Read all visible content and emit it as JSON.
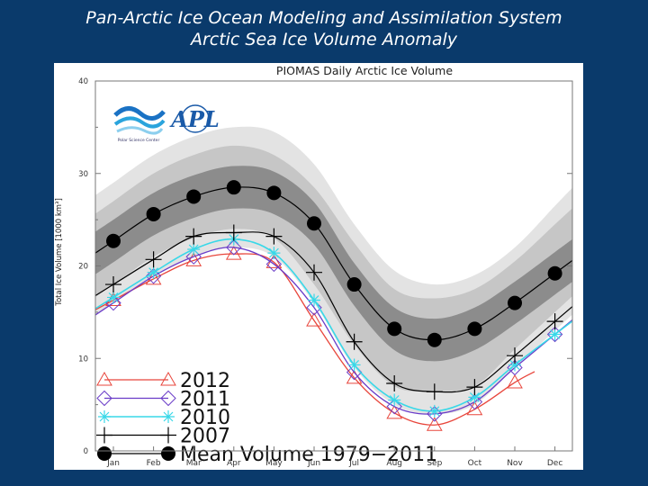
{
  "slide": {
    "title_line1": "Pan-Arctic Ice Ocean Modeling and Assimilation System",
    "title_line2": "Arctic Sea Ice Volume Anomaly"
  },
  "logos": {
    "psc_text": "Polar Science Center",
    "apl_text": "APL"
  },
  "colors": {
    "background": "#0a3a6b",
    "band_outer": "#e3e3e3",
    "band_mid": "#c6c6c6",
    "band_inner": "#8c8c8c",
    "mean": "#000000",
    "y2012": "#e8463c",
    "y2011": "#6a3cc8",
    "y2010": "#38d8e8",
    "y2007": "#000000"
  },
  "chart_data": {
    "type": "line",
    "title": "PIOMAS Daily Arctic Ice Volume",
    "xlabel": "",
    "ylabel": "Total Ice Volume [1000 km³]",
    "ylim": [
      0,
      40
    ],
    "yticks": [
      0,
      10,
      20,
      30,
      40
    ],
    "categories": [
      "Jan",
      "Feb",
      "Mar",
      "Apr",
      "May",
      "Jun",
      "Jul",
      "Aug",
      "Sep",
      "Oct",
      "Nov",
      "Dec"
    ],
    "bands": {
      "outer_upper": [
        29.0,
        32.0,
        34.0,
        35.0,
        34.5,
        31.0,
        24.5,
        19.5,
        18.0,
        19.0,
        22.0,
        26.5
      ],
      "outer_lower": [
        16.0,
        19.0,
        21.0,
        22.0,
        21.0,
        16.0,
        9.0,
        5.0,
        4.0,
        5.0,
        9.0,
        13.0
      ],
      "mid_upper": [
        27.0,
        30.0,
        32.0,
        33.0,
        32.0,
        28.5,
        22.5,
        17.5,
        16.5,
        17.5,
        20.5,
        24.5
      ],
      "mid_lower": [
        18.0,
        21.0,
        23.0,
        24.0,
        23.0,
        18.0,
        11.5,
        7.0,
        6.5,
        7.0,
        11.0,
        15.0
      ]
    },
    "series": [
      {
        "name": "Mean Volume 1979−2011",
        "marker": "circle",
        "values": [
          22.7,
          25.6,
          27.5,
          28.5,
          27.9,
          24.6,
          18.0,
          13.2,
          12.0,
          13.2,
          16.0,
          19.2
        ]
      },
      {
        "name": "2007",
        "marker": "plus",
        "values": [
          18.0,
          20.7,
          23.2,
          23.6,
          23.2,
          19.3,
          11.8,
          7.3,
          6.4,
          6.9,
          10.3,
          14.0
        ]
      },
      {
        "name": "2010",
        "marker": "asterisk",
        "values": [
          16.6,
          19.3,
          21.8,
          22.9,
          21.4,
          16.3,
          9.3,
          5.5,
          4.3,
          5.8,
          9.3,
          12.6
        ]
      },
      {
        "name": "2011",
        "marker": "diamond",
        "values": [
          16.0,
          18.9,
          21.0,
          22.0,
          20.2,
          15.5,
          8.5,
          4.8,
          4.0,
          5.3,
          9.0,
          12.6
        ]
      },
      {
        "name": "2012",
        "marker": "triangle",
        "values": [
          16.3,
          18.6,
          20.6,
          21.3,
          20.4,
          14.1,
          7.9,
          4.1,
          2.8,
          4.5,
          7.4,
          null
        ]
      }
    ],
    "legend_order": [
      "2012",
      "2011",
      "2010",
      "2007",
      "Mean Volume 1979−2011"
    ],
    "legend_position": "bottom-left"
  }
}
